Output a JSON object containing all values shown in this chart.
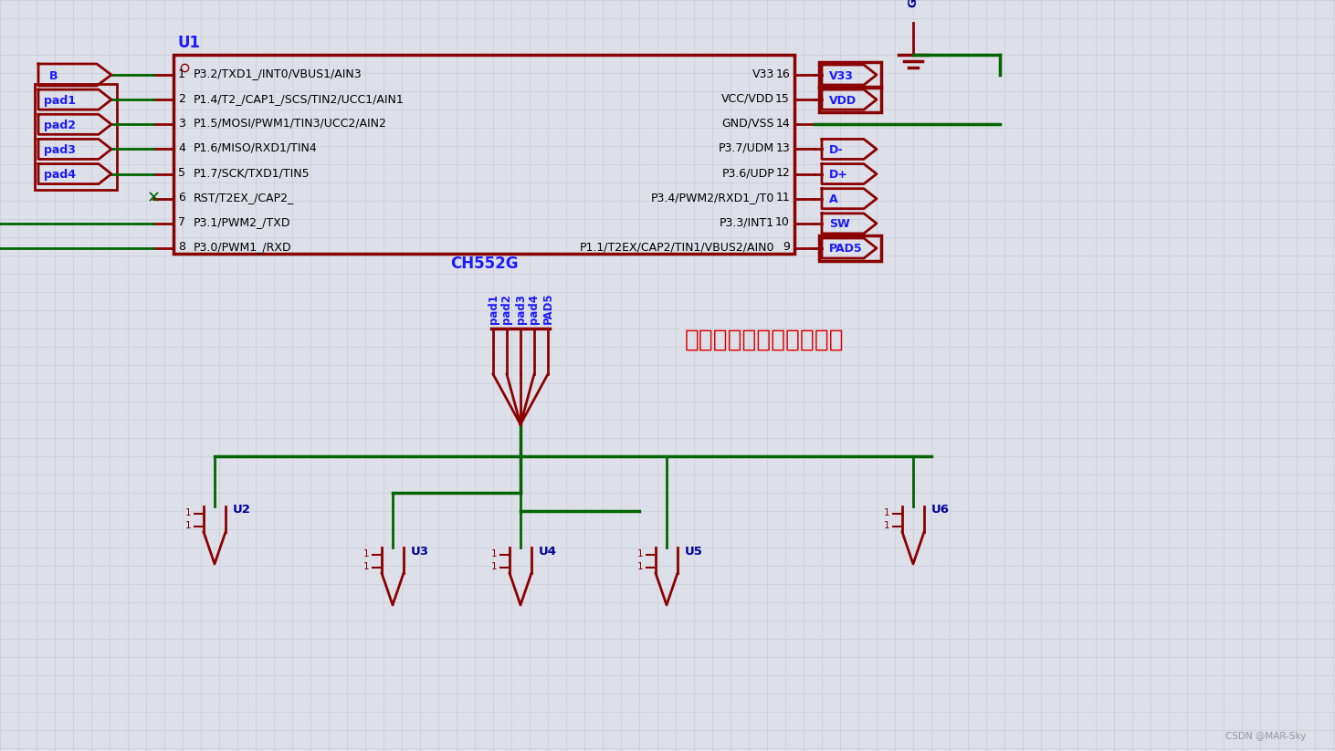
{
  "bg_color": "#dde0e8",
  "grid_color": "#c8ccd8",
  "dark_red": "#8B0000",
  "green": "#006400",
  "blue": "#1a1aff",
  "dark_blue": "#000099",
  "red_annot": "#dd0000",
  "chip_label": "U1",
  "chip_name": "CH552G",
  "left_pins": [
    {
      "num": 1,
      "label": "P3.2/TXD1_/INT0/VBUS1/AIN3"
    },
    {
      "num": 2,
      "label": "P1.4/T2_/CAP1_/SCS/TIN2/UCC1/AIN1"
    },
    {
      "num": 3,
      "label": "P1.5/MOSI/PWM1/TIN3/UCC2/AIN2"
    },
    {
      "num": 4,
      "label": "P1.6/MISO/RXD1/TIN4"
    },
    {
      "num": 5,
      "label": "P1.7/SCK/TXD1/TIN5"
    },
    {
      "num": 6,
      "label": "RST/T2EX_/CAP2_"
    },
    {
      "num": 7,
      "label": "P3.1/PWM2_/TXD"
    },
    {
      "num": 8,
      "label": "P3.0/PWM1_/RXD"
    }
  ],
  "right_pins": [
    {
      "num": 16,
      "label": "V33"
    },
    {
      "num": 15,
      "label": "VCC/VDD"
    },
    {
      "num": 14,
      "label": "GND/VSS"
    },
    {
      "num": 13,
      "label": "P3.7/UDM"
    },
    {
      "num": 12,
      "label": "P3.6/UDP"
    },
    {
      "num": 11,
      "label": "P3.4/PWM2/RXD1_/T0"
    },
    {
      "num": 10,
      "label": "P3.3/INT1"
    },
    {
      "num": 9,
      "label": "P1.1/T2EX/CAP2/TIN1/VBUS2/AIN0"
    }
  ],
  "right_connectors": [
    {
      "label": "V33",
      "pin_idx": 0,
      "highlighted": true
    },
    {
      "label": "VDD",
      "pin_idx": 1,
      "highlighted": true
    },
    {
      "label": "D-",
      "pin_idx": 3,
      "highlighted": false
    },
    {
      "label": "D+",
      "pin_idx": 4,
      "highlighted": false
    },
    {
      "label": "A",
      "pin_idx": 5,
      "highlighted": false
    },
    {
      "label": "SW",
      "pin_idx": 6,
      "highlighted": false
    },
    {
      "label": "PAD5",
      "pin_idx": 7,
      "highlighted": true
    }
  ],
  "annotation": "可以作为触摸按键的引脚",
  "bottom_labels": [
    "pad1",
    "pad2",
    "pad3",
    "pad4",
    "PAD5"
  ],
  "bottom_units": [
    "U2",
    "U3",
    "U4",
    "U5",
    "U6"
  ],
  "watermark": "CSDN @MAR-Sky"
}
